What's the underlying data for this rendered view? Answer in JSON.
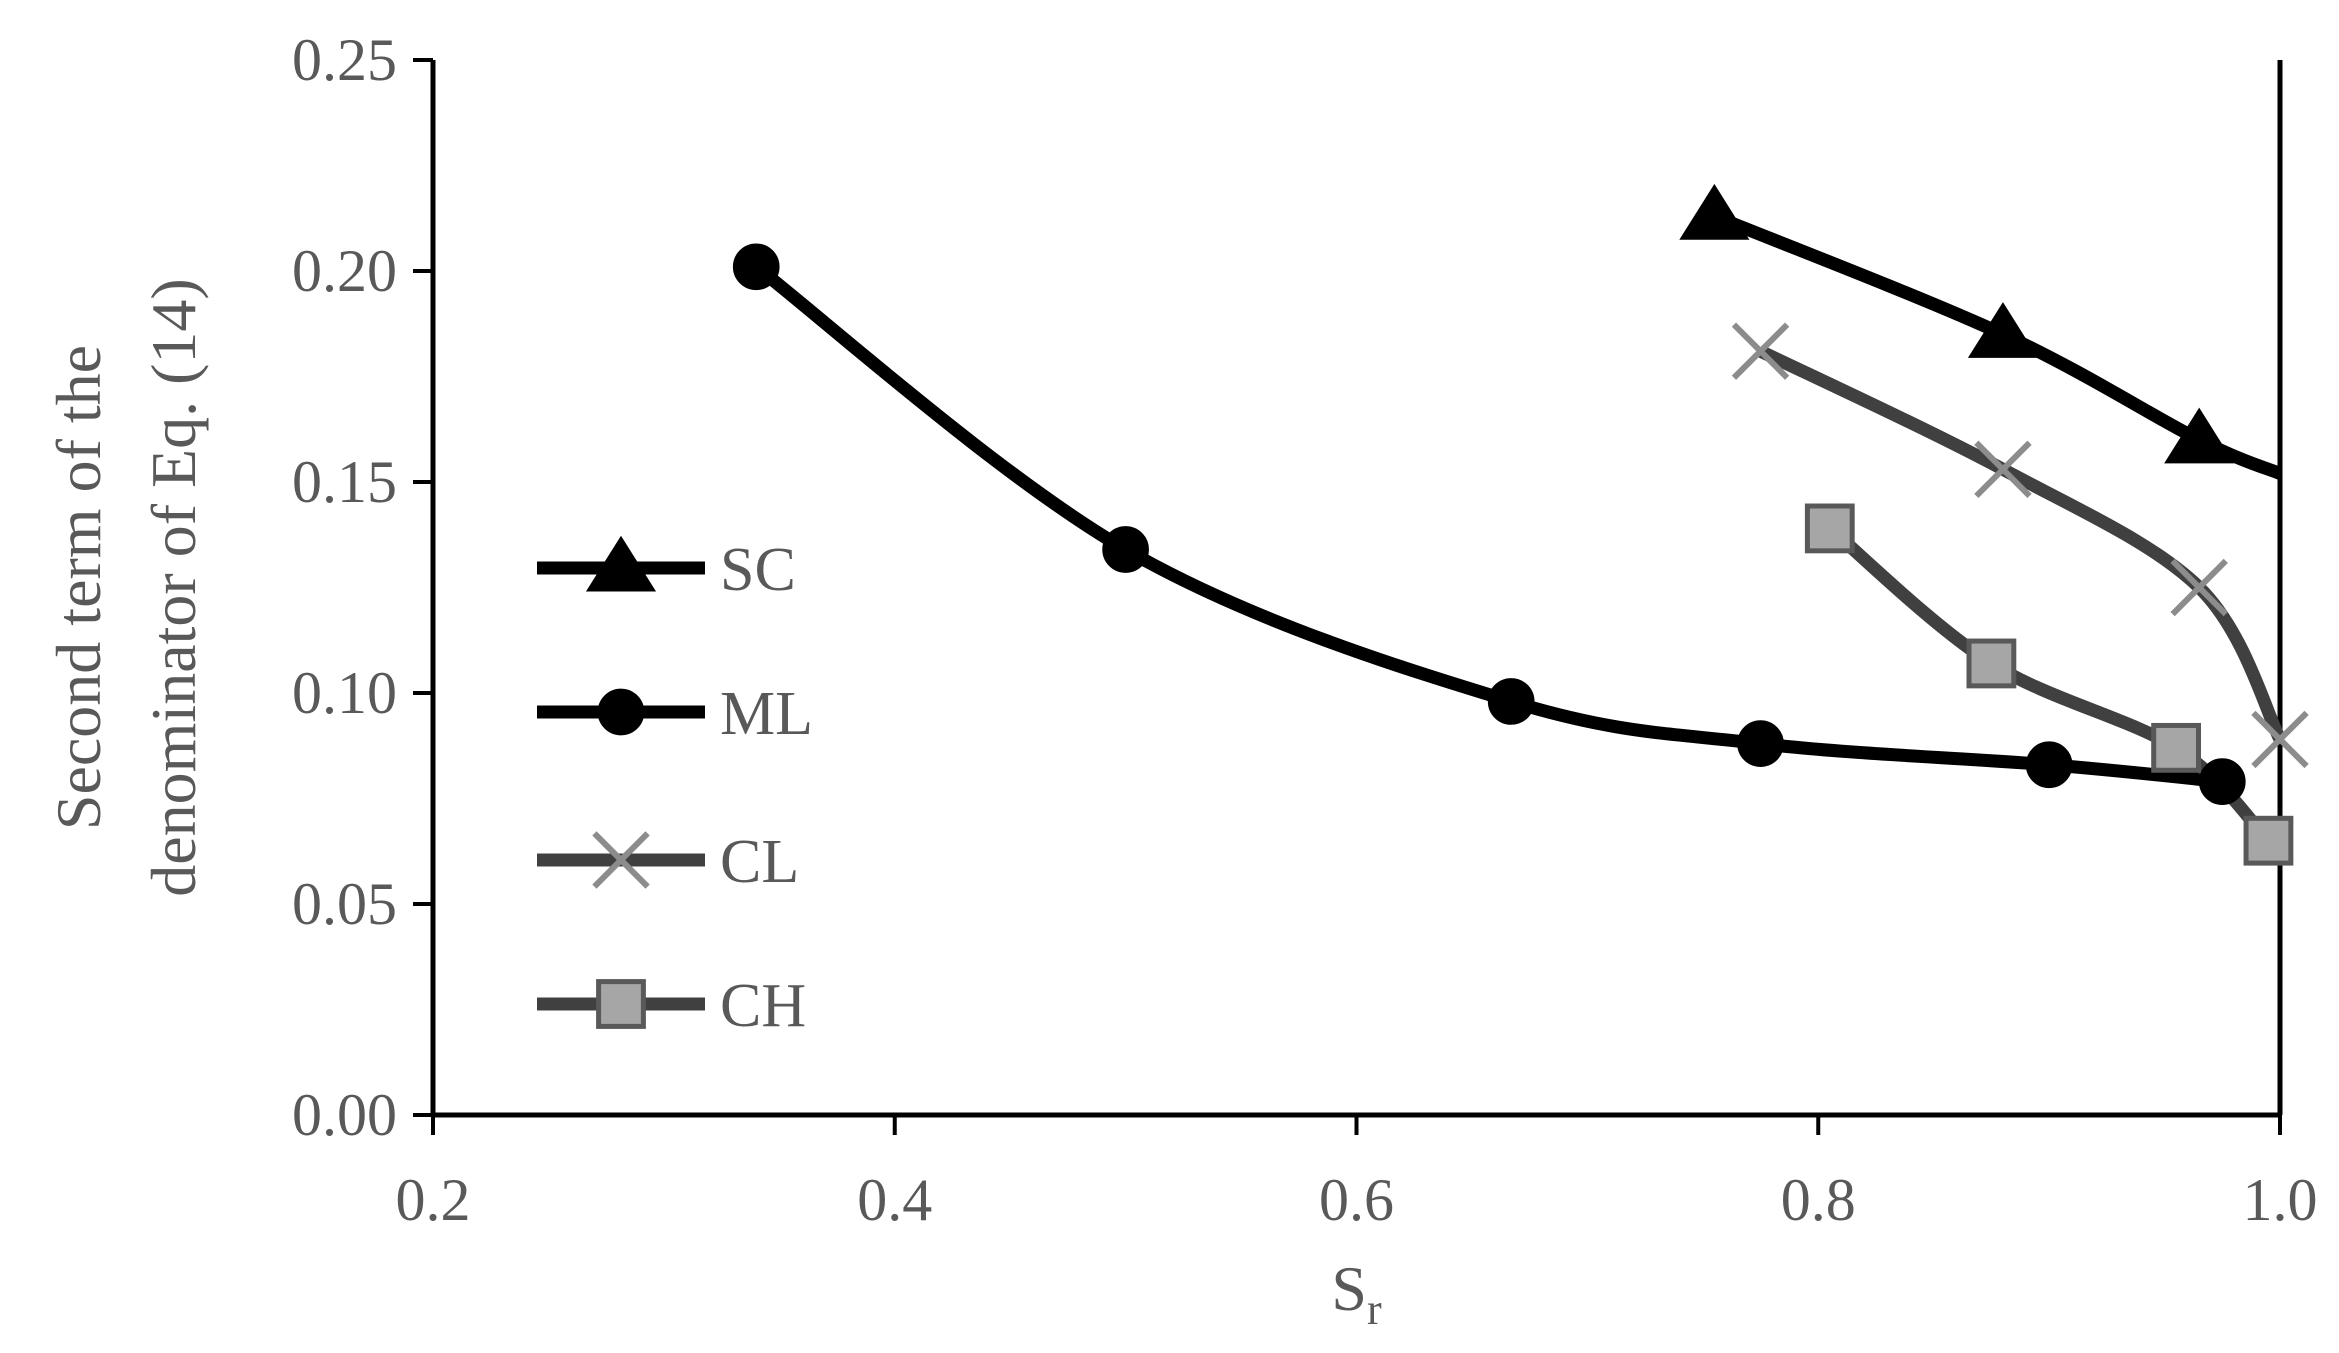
{
  "chart_data": {
    "type": "line",
    "title": "",
    "xlabel": {
      "main": "S",
      "sub": "r"
    },
    "ylabel_lines": [
      "Second term of the",
      "denominator of Eq. (14)"
    ],
    "xlim": [
      0.2,
      1.0
    ],
    "ylim": [
      0.0,
      0.25
    ],
    "x_ticks": [
      0.2,
      0.4,
      0.6,
      0.8,
      1.0
    ],
    "y_ticks": [
      0.0,
      0.05,
      0.1,
      0.15,
      0.2,
      0.25
    ],
    "x_tick_labels": [
      "0.2",
      "0.4",
      "0.6",
      "0.8",
      "1.0"
    ],
    "y_tick_labels": [
      "0.00",
      "0.05",
      "0.10",
      "0.15",
      "0.20",
      "0.25"
    ],
    "grid": false,
    "legend_position": "left",
    "series": [
      {
        "name": "SC",
        "marker": "triangle",
        "line_color": "#000000",
        "marker_fill": "#000000",
        "marker_stroke": "#000000",
        "points": [
          [
            0.755,
            0.213
          ],
          [
            0.88,
            0.185
          ],
          [
            0.965,
            0.16
          ],
          [
            1.0,
            0.152
          ]
        ]
      },
      {
        "name": "ML",
        "marker": "circle",
        "line_color": "#000000",
        "marker_fill": "#000000",
        "marker_stroke": "#000000",
        "points": [
          [
            0.34,
            0.201
          ],
          [
            0.5,
            0.134
          ],
          [
            0.667,
            0.098
          ],
          [
            0.775,
            0.088
          ],
          [
            0.9,
            0.083
          ],
          [
            0.975,
            0.079
          ]
        ]
      },
      {
        "name": "CL",
        "marker": "cross",
        "line_color": "#404040",
        "marker_fill": "none",
        "marker_stroke": "#8c8c8c",
        "points": [
          [
            0.775,
            0.181
          ],
          [
            0.88,
            0.153
          ],
          [
            0.965,
            0.125
          ],
          [
            1.0,
            0.089
          ]
        ]
      },
      {
        "name": "CH",
        "marker": "square",
        "line_color": "#404040",
        "marker_fill": "#a6a6a6",
        "marker_stroke": "#595959",
        "points": [
          [
            0.805,
            0.139
          ],
          [
            0.875,
            0.107
          ],
          [
            0.955,
            0.087
          ],
          [
            0.995,
            0.065
          ]
        ]
      }
    ]
  }
}
